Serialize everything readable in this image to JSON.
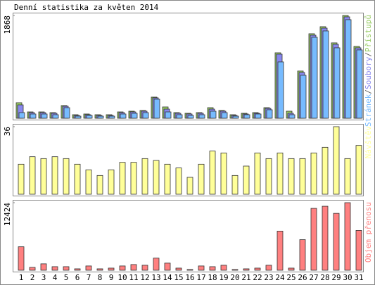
{
  "title": "Denní statistika za květen 2014",
  "weekend_indices": [
    2,
    3,
    9,
    10,
    16,
    17,
    23,
    24,
    30
  ],
  "weekend_color": "#669933",
  "legend_separator": "/",
  "chart_data": [
    {
      "type": "bar3",
      "ylim": [
        0,
        1868
      ],
      "yticks": [
        1868
      ],
      "series": [
        {
          "name": "Přístupů",
          "color": "#99cc66",
          "values": [
            282,
            115,
            115,
            102,
            230,
            64,
            77,
            64,
            64,
            115,
            128,
            141,
            384,
            205,
            102,
            90,
            102,
            192,
            141,
            64,
            90,
            102,
            192,
            1190,
            128,
            858,
            1536,
            1664,
            1370,
            1868,
            1306
          ]
        },
        {
          "name": "Soubory",
          "color": "#8888ee",
          "values": [
            243,
            102,
            102,
            90,
            218,
            51,
            64,
            51,
            51,
            102,
            115,
            128,
            371,
            166,
            90,
            77,
            90,
            166,
            128,
            51,
            77,
            90,
            179,
            1165,
            90,
            832,
            1510,
            1638,
            1344,
            1843,
            1280
          ]
        },
        {
          "name": "Stránek",
          "color": "#77bbff",
          "values": [
            102,
            77,
            77,
            64,
            192,
            38,
            51,
            38,
            38,
            77,
            90,
            102,
            346,
            115,
            64,
            51,
            64,
            128,
            102,
            38,
            64,
            77,
            154,
            1024,
            64,
            781,
            1472,
            1587,
            1280,
            1792,
            1242
          ]
        }
      ]
    },
    {
      "type": "bar",
      "ylim": [
        0,
        36
      ],
      "yticks": [
        36
      ],
      "series": [
        {
          "name": "Návštěv",
          "color": "#ffff99",
          "values": [
            16,
            20,
            19,
            20,
            19,
            16,
            13,
            10,
            13,
            17,
            17,
            19,
            18,
            16,
            14,
            9,
            16,
            23,
            22,
            10,
            15,
            22,
            19,
            22,
            19,
            19,
            22,
            25,
            36,
            19,
            26
          ]
        }
      ]
    },
    {
      "type": "bar",
      "ylim": [
        0,
        12424
      ],
      "yticks": [
        12424
      ],
      "categories": [
        "1",
        "2",
        "3",
        "4",
        "5",
        "6",
        "7",
        "8",
        "9",
        "10",
        "11",
        "12",
        "13",
        "14",
        "15",
        "16",
        "17",
        "18",
        "19",
        "20",
        "21",
        "22",
        "23",
        "24",
        "25",
        "26",
        "27",
        "28",
        "29",
        "30",
        "31"
      ],
      "series": [
        {
          "name": "Objem přenosu",
          "color": "#ff8080",
          "values": [
            4316,
            523,
            1177,
            654,
            654,
            262,
            785,
            262,
            392,
            785,
            1046,
            915,
            2223,
            1308,
            392,
            131,
            785,
            654,
            915,
            131,
            262,
            392,
            915,
            7193,
            392,
            5624,
            11378,
            11770,
            10462,
            12424,
            7324
          ]
        }
      ]
    }
  ]
}
